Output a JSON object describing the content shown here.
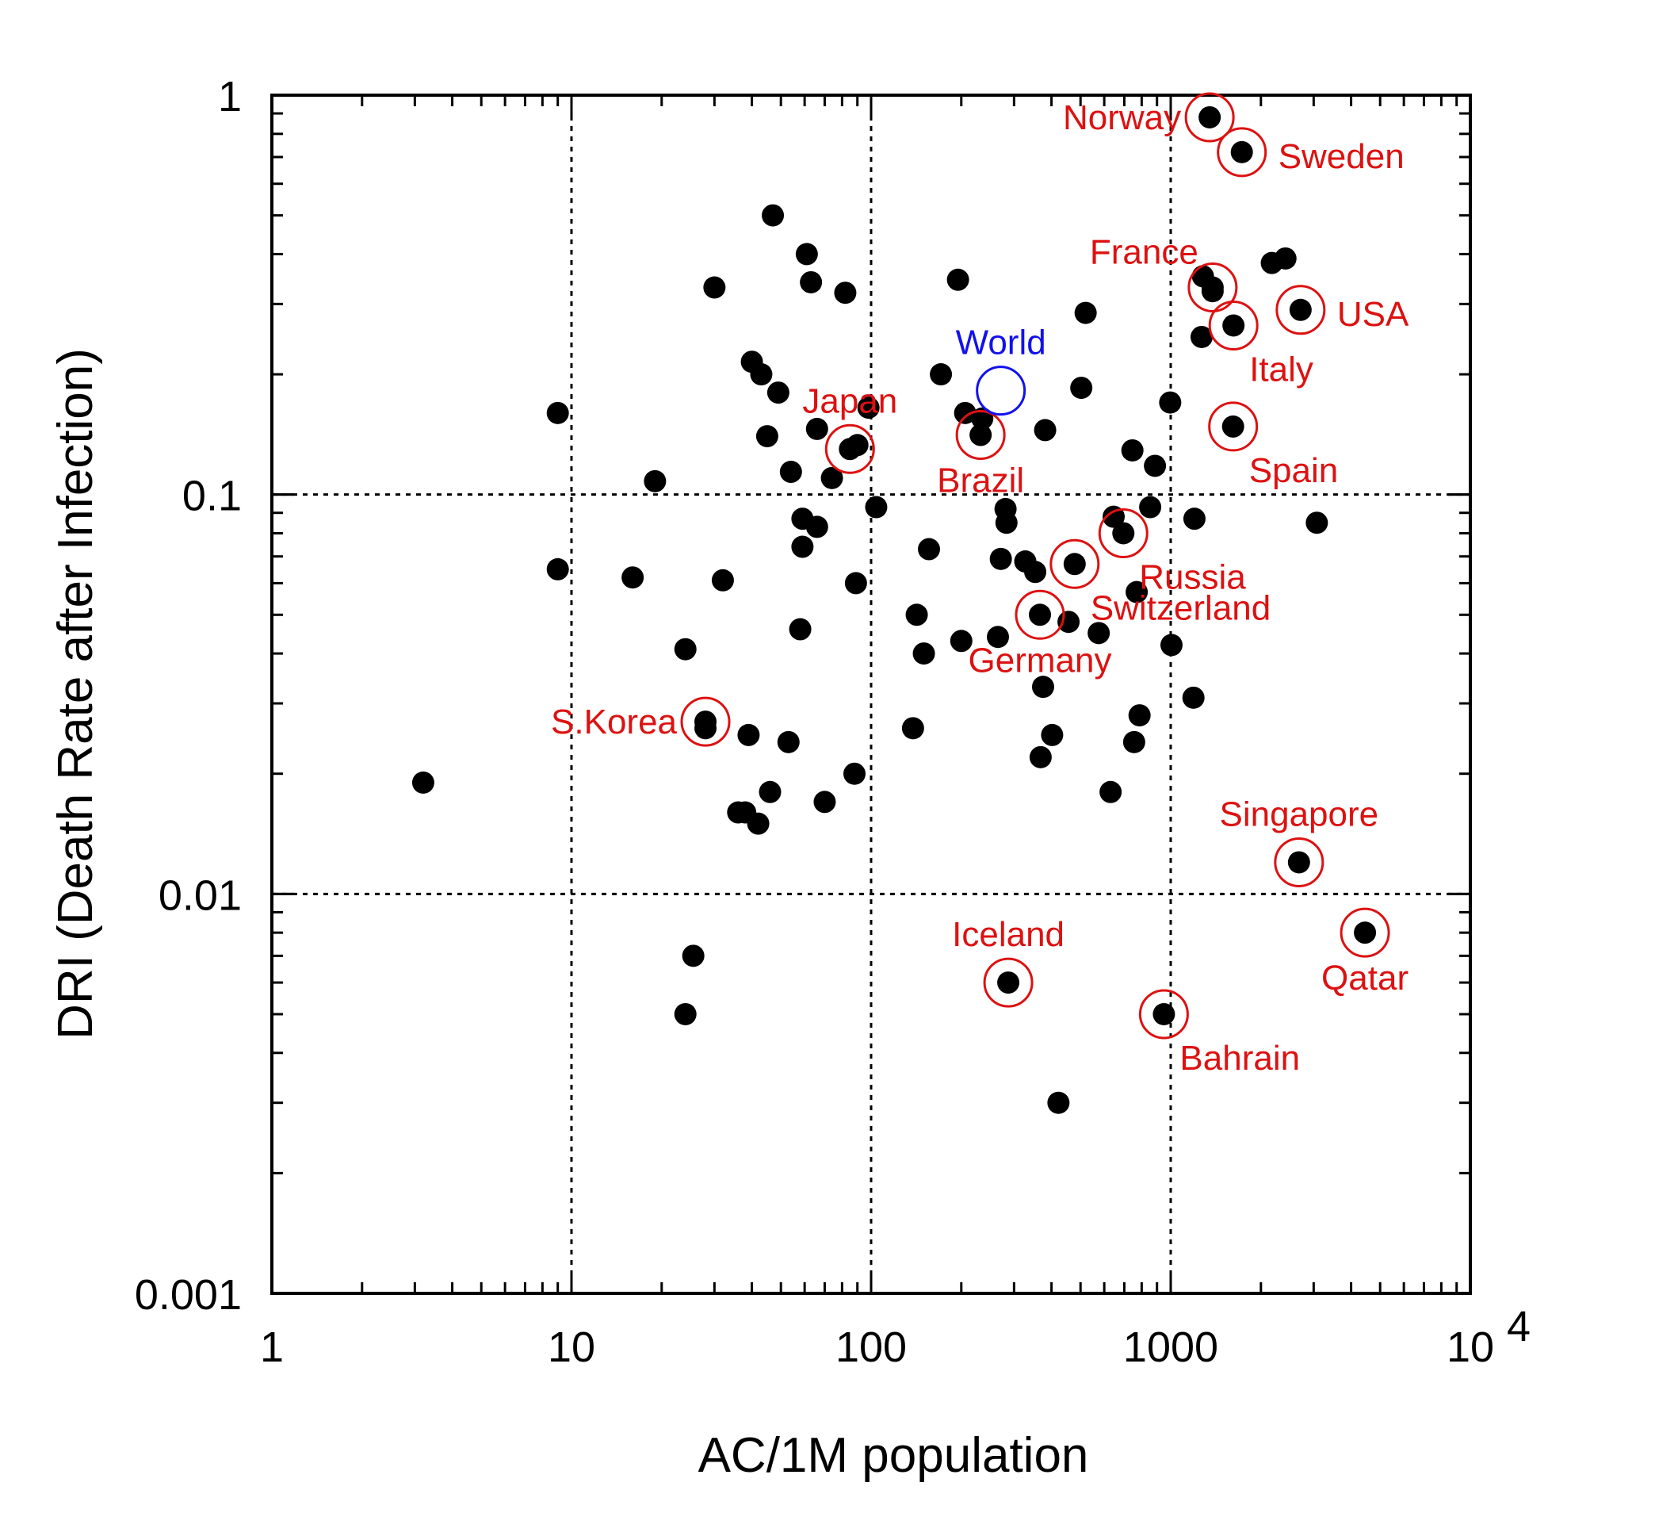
{
  "chart_data": {
    "type": "scatter",
    "title": "",
    "xlabel": "AC/1M population",
    "ylabel": "DRI (Death Rate after Infection)",
    "xscale": "log",
    "yscale": "log",
    "xlim": [
      1,
      10000
    ],
    "ylim": [
      0.001,
      1
    ],
    "grid": "dotted at decades",
    "x_ticks": [
      {
        "value": 1,
        "label": "1"
      },
      {
        "value": 10,
        "label": "10"
      },
      {
        "value": 100,
        "label": "100"
      },
      {
        "value": 1000,
        "label": "1000"
      },
      {
        "value": 10000,
        "label": "10",
        "exponent": "4"
      }
    ],
    "y_ticks": [
      {
        "value": 1,
        "label": "1"
      },
      {
        "value": 0.1,
        "label": "0.1"
      },
      {
        "value": 0.01,
        "label": "0.01"
      },
      {
        "value": 0.001,
        "label": "0.001"
      }
    ],
    "point_color": "#000000",
    "highlight_color": "#dd1111",
    "world_color": "#1111ee",
    "points": [
      [
        3.2,
        0.019
      ],
      [
        9,
        0.16
      ],
      [
        9,
        0.065
      ],
      [
        16,
        0.062
      ],
      [
        19,
        0.108
      ],
      [
        24,
        0.041
      ],
      [
        24,
        0.005
      ],
      [
        25.5,
        0.007
      ],
      [
        30,
        0.33
      ],
      [
        32,
        0.061
      ],
      [
        28,
        0.026
      ],
      [
        36,
        0.016
      ],
      [
        38,
        0.016
      ],
      [
        39,
        0.025
      ],
      [
        42,
        0.015
      ],
      [
        40,
        0.215
      ],
      [
        43,
        0.2
      ],
      [
        45,
        0.14
      ],
      [
        46,
        0.018
      ],
      [
        47,
        0.5
      ],
      [
        49,
        0.18
      ],
      [
        53,
        0.024
      ],
      [
        54,
        0.114
      ],
      [
        58,
        0.046
      ],
      [
        59,
        0.087
      ],
      [
        59,
        0.074
      ],
      [
        61,
        0.4
      ],
      [
        63,
        0.34
      ],
      [
        66,
        0.083
      ],
      [
        66,
        0.146
      ],
      [
        70,
        0.017
      ],
      [
        74,
        0.11
      ],
      [
        82,
        0.32
      ],
      [
        88,
        0.02
      ],
      [
        89,
        0.06
      ],
      [
        98,
        0.165
      ],
      [
        104,
        0.093
      ],
      [
        138,
        0.026
      ],
      [
        142,
        0.05
      ],
      [
        150,
        0.04
      ],
      [
        156,
        0.073
      ],
      [
        171,
        0.2
      ],
      [
        195,
        0.345
      ],
      [
        200,
        0.043
      ],
      [
        206,
        0.16
      ],
      [
        235,
        0.155
      ],
      [
        265,
        0.044
      ],
      [
        271,
        0.069
      ],
      [
        281,
        0.092
      ],
      [
        283,
        0.085
      ],
      [
        327,
        0.068
      ],
      [
        353,
        0.064
      ],
      [
        368,
        0.022
      ],
      [
        375,
        0.033
      ],
      [
        381,
        0.145
      ],
      [
        402,
        0.025
      ],
      [
        422,
        0.003
      ],
      [
        456,
        0.048
      ],
      [
        503,
        0.185
      ],
      [
        520,
        0.285
      ],
      [
        575,
        0.045
      ],
      [
        630,
        0.018
      ],
      [
        645,
        0.088
      ],
      [
        745,
        0.129
      ],
      [
        755,
        0.024
      ],
      [
        770,
        0.057
      ],
      [
        787,
        0.028
      ],
      [
        854,
        0.093
      ],
      [
        886,
        0.118
      ],
      [
        996,
        0.17
      ],
      [
        1006,
        0.042
      ],
      [
        1191,
        0.031
      ],
      [
        1200,
        0.087
      ],
      [
        1268,
        0.248
      ],
      [
        1281,
        0.352
      ],
      [
        2175,
        0.38
      ],
      [
        2415,
        0.39
      ],
      [
        3074,
        0.085
      ]
    ],
    "annotated": [
      {
        "label": "Norway",
        "x": 1349,
        "y": 0.88,
        "color": "red",
        "pos": "left"
      },
      {
        "label": "Sweden",
        "x": 1727,
        "y": 0.72,
        "color": "red",
        "pos": "right"
      },
      {
        "label": "France",
        "x": 1380,
        "y": 0.33,
        "color": "red",
        "pos": "above-left",
        "extra_points": [
          [
            1380,
            0.323
          ]
        ]
      },
      {
        "label": "USA",
        "x": 2713,
        "y": 0.29,
        "color": "red",
        "pos": "right"
      },
      {
        "label": "Italy",
        "x": 1620,
        "y": 0.265,
        "color": "red",
        "pos": "below-right"
      },
      {
        "label": "Spain",
        "x": 1615,
        "y": 0.148,
        "color": "red",
        "pos": "below-right"
      },
      {
        "label": "Japan",
        "x": 85,
        "y": 0.13,
        "color": "red",
        "pos": "above",
        "extra_points": [
          [
            90,
            0.133
          ]
        ]
      },
      {
        "label": "Brazil",
        "x": 232,
        "y": 0.141,
        "color": "red",
        "pos": "below"
      },
      {
        "label": "World",
        "x": 271,
        "y": 0.182,
        "color": "blue",
        "pos": "above",
        "open_circle_only": true
      },
      {
        "label": "Russia",
        "x": 695,
        "y": 0.08,
        "color": "red",
        "pos": "below-right"
      },
      {
        "label": "Switzerland",
        "x": 478,
        "y": 0.067,
        "color": "red",
        "pos": "below-right"
      },
      {
        "label": "Germany",
        "x": 366,
        "y": 0.05,
        "color": "red",
        "pos": "below"
      },
      {
        "label": "S.Korea",
        "x": 28,
        "y": 0.027,
        "color": "red",
        "pos": "left"
      },
      {
        "label": "Singapore",
        "x": 2680,
        "y": 0.012,
        "color": "red",
        "pos": "above"
      },
      {
        "label": "Qatar",
        "x": 4450,
        "y": 0.008,
        "color": "red",
        "pos": "below"
      },
      {
        "label": "Iceland",
        "x": 287,
        "y": 0.006,
        "color": "red",
        "pos": "above"
      },
      {
        "label": "Bahrain",
        "x": 949,
        "y": 0.005,
        "color": "red",
        "pos": "below-right"
      }
    ]
  }
}
